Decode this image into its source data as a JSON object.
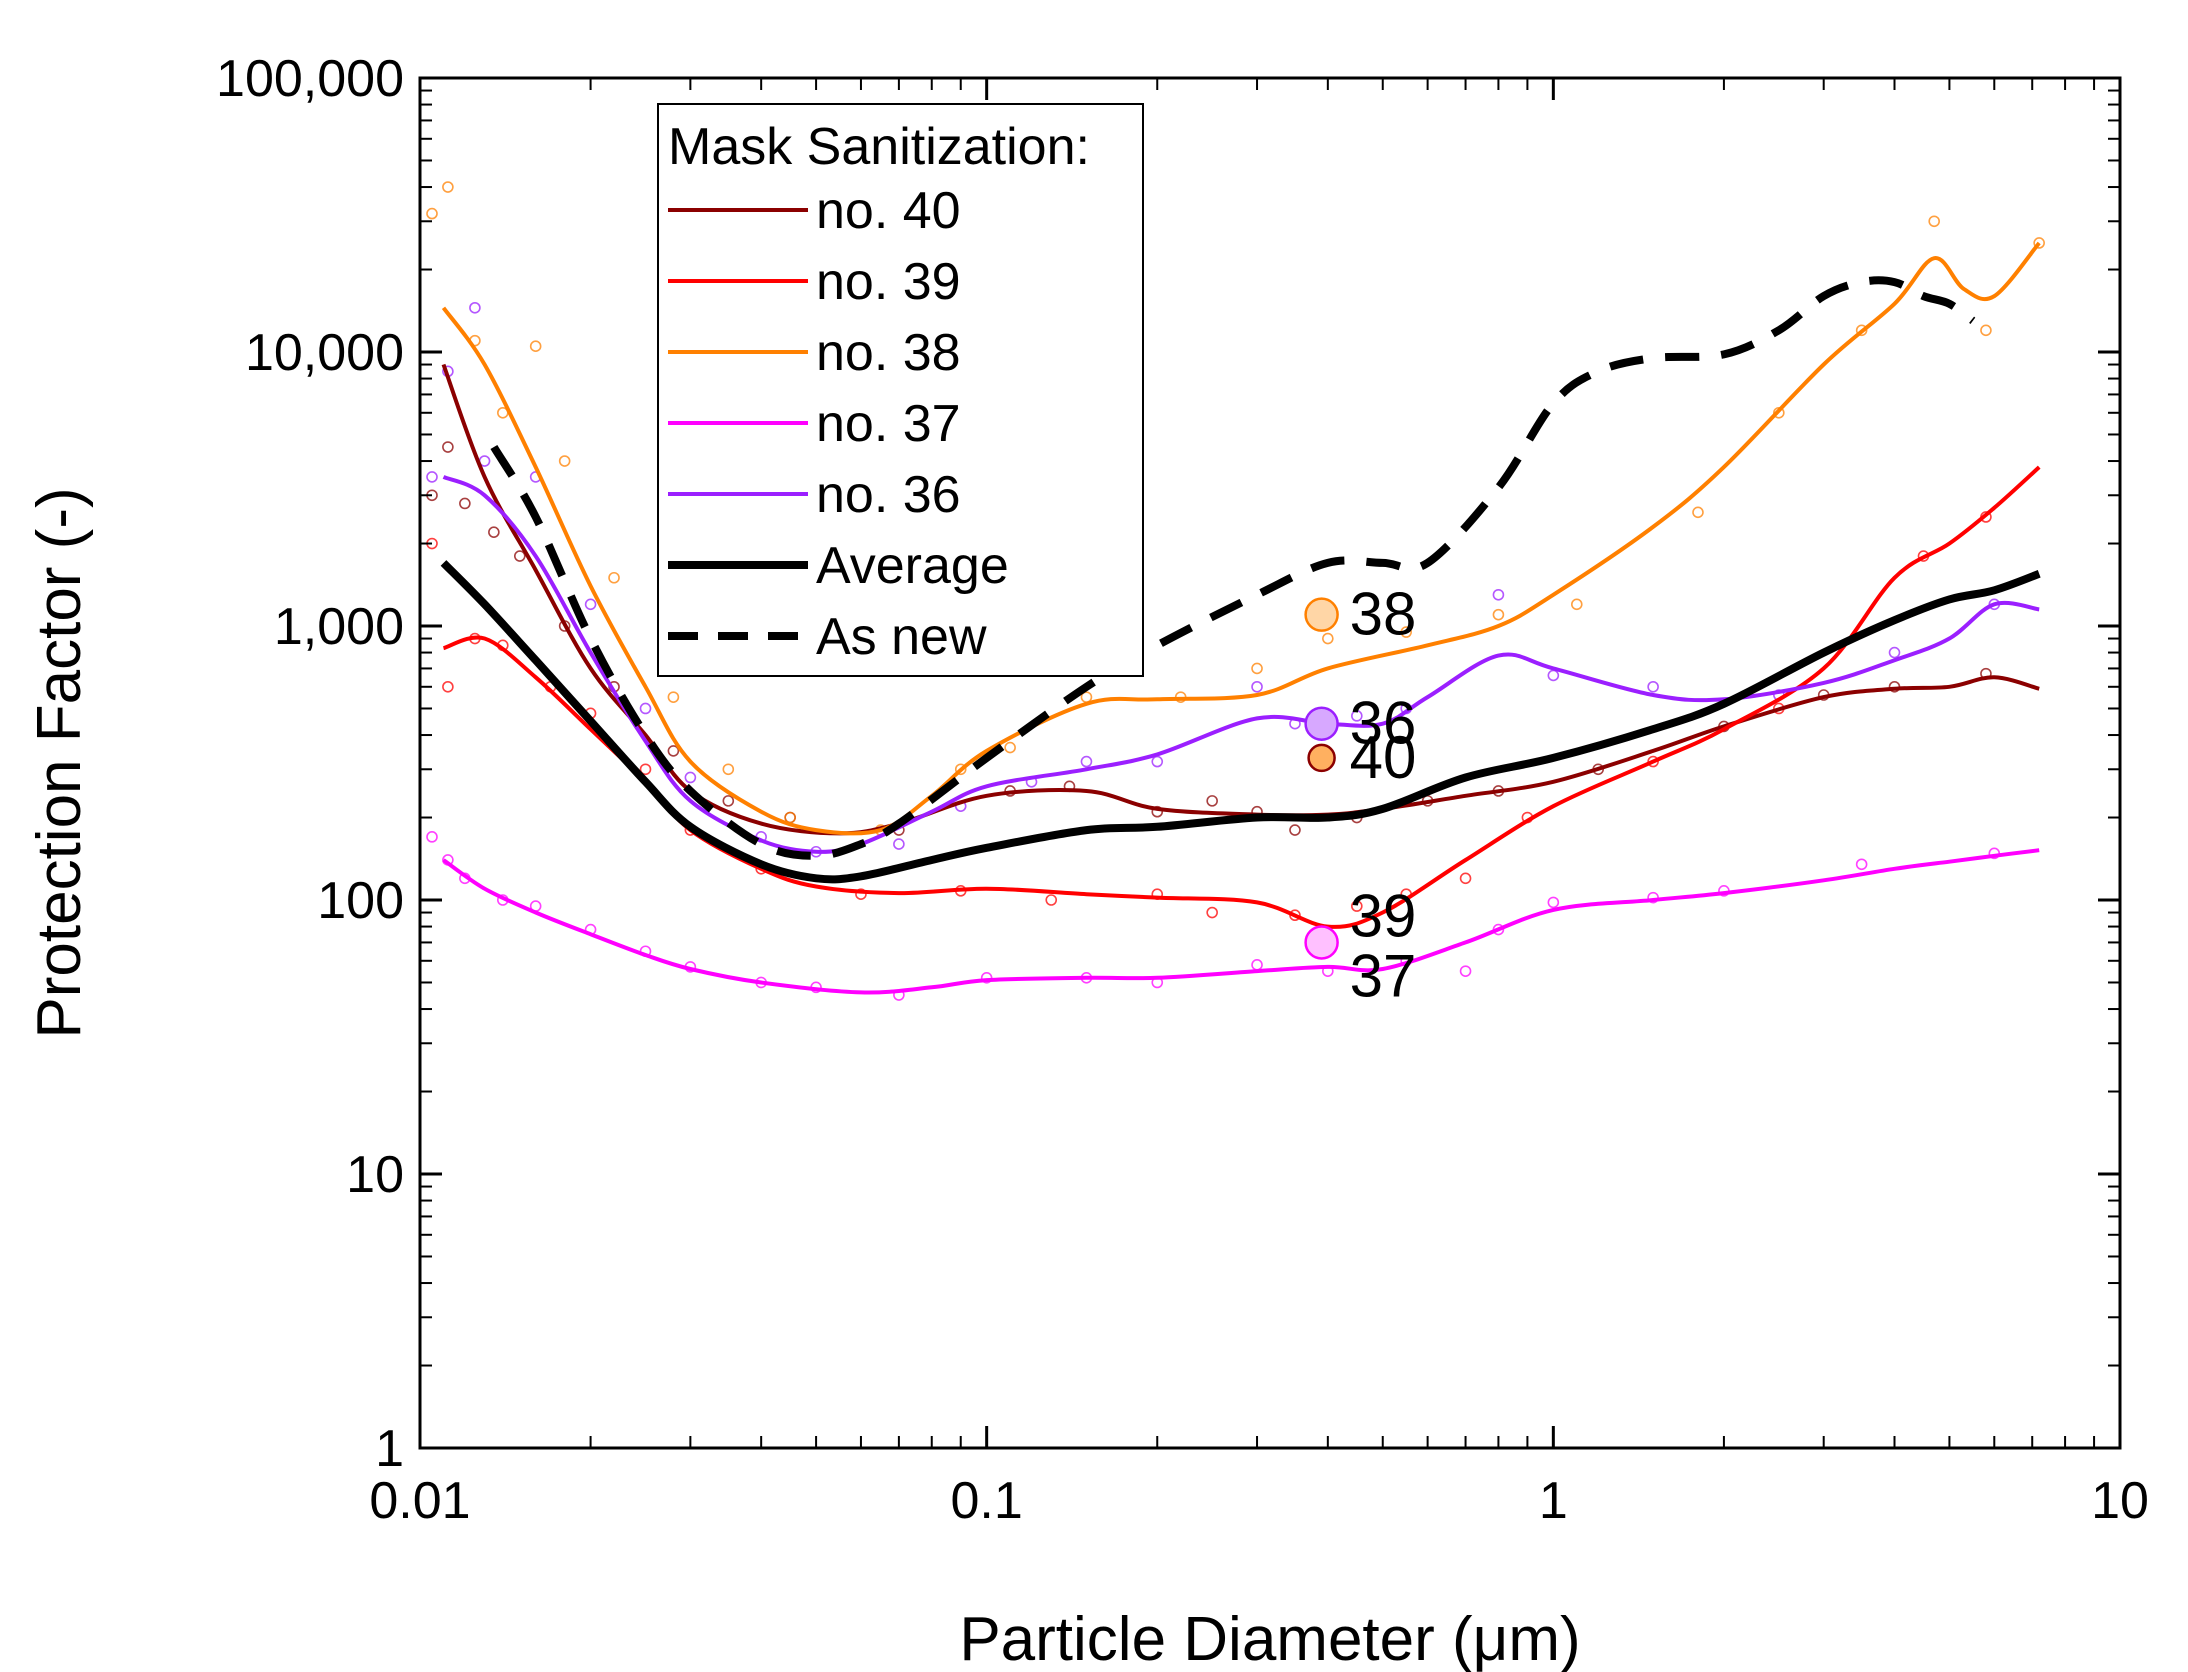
{
  "chart_data": {
    "type": "line",
    "xlabel": "Particle Diameter (μm)",
    "ylabel": "Protection Factor (-)",
    "xscale": "log",
    "yscale": "log",
    "xlim": [
      0.01,
      10
    ],
    "ylim": [
      1,
      100000
    ],
    "x_ticks": [
      {
        "value": 0.01,
        "label": "0.01"
      },
      {
        "value": 0.1,
        "label": "0.1"
      },
      {
        "value": 1,
        "label": "1"
      },
      {
        "value": 10,
        "label": "10"
      }
    ],
    "y_ticks": [
      {
        "value": 1,
        "label": "1"
      },
      {
        "value": 10,
        "label": "10"
      },
      {
        "value": 100,
        "label": "100"
      },
      {
        "value": 1000,
        "label": "1,000"
      },
      {
        "value": 10000,
        "label": "10,000"
      },
      {
        "value": 100000,
        "label": "100,000"
      }
    ],
    "legend": {
      "title": "Mask Sanitization:",
      "position": "top-left"
    },
    "series": [
      {
        "name": "no. 40",
        "color": "#8b0000",
        "style": "solid",
        "width": "normal",
        "x": [
          0.011,
          0.013,
          0.016,
          0.02,
          0.025,
          0.03,
          0.04,
          0.055,
          0.07,
          0.1,
          0.15,
          0.2,
          0.3,
          0.4,
          0.5,
          0.7,
          1.0,
          1.5,
          2.0,
          3.0,
          4.0,
          5.0,
          6.0,
          7.2
        ],
        "y": [
          9000,
          3500,
          1600,
          700,
          400,
          250,
          190,
          175,
          190,
          240,
          250,
          215,
          205,
          205,
          215,
          240,
          270,
          350,
          430,
          550,
          590,
          600,
          650,
          590
        ]
      },
      {
        "name": "no. 39",
        "color": "#ff0000",
        "style": "solid",
        "width": "normal",
        "x": [
          0.011,
          0.013,
          0.016,
          0.02,
          0.025,
          0.03,
          0.04,
          0.05,
          0.07,
          0.1,
          0.15,
          0.2,
          0.3,
          0.4,
          0.5,
          0.7,
          1.0,
          1.5,
          2.0,
          3.0,
          4.0,
          5.0,
          6.0,
          7.2
        ],
        "y": [
          830,
          900,
          650,
          420,
          270,
          180,
          130,
          112,
          106,
          110,
          105,
          102,
          98,
          80,
          90,
          140,
          220,
          320,
          420,
          700,
          1500,
          2000,
          2700,
          3800
        ]
      },
      {
        "name": "no. 38",
        "color": "#ff8000",
        "style": "solid",
        "width": "normal",
        "x": [
          0.011,
          0.013,
          0.016,
          0.02,
          0.025,
          0.03,
          0.04,
          0.05,
          0.065,
          0.08,
          0.1,
          0.15,
          0.2,
          0.3,
          0.4,
          0.6,
          0.8,
          1.0,
          1.5,
          2.0,
          3.0,
          4.0,
          4.7,
          5.3,
          6.0,
          7.2
        ],
        "y": [
          14500,
          9000,
          3800,
          1400,
          600,
          320,
          210,
          180,
          180,
          240,
          350,
          520,
          540,
          560,
          700,
          850,
          1000,
          1300,
          2300,
          3800,
          9000,
          15000,
          22000,
          17000,
          16000,
          25000
        ]
      },
      {
        "name": "no. 37",
        "color": "#ff00ff",
        "style": "solid",
        "width": "normal",
        "x": [
          0.011,
          0.013,
          0.016,
          0.02,
          0.025,
          0.03,
          0.04,
          0.06,
          0.08,
          0.1,
          0.15,
          0.2,
          0.3,
          0.4,
          0.5,
          0.7,
          1.0,
          1.5,
          2.0,
          3.0,
          4.0,
          5.0,
          6.0,
          7.2
        ],
        "y": [
          140,
          110,
          90,
          75,
          63,
          56,
          50,
          46,
          48,
          51,
          52,
          52,
          55,
          57,
          56,
          70,
          92,
          100,
          106,
          118,
          130,
          138,
          145,
          152
        ]
      },
      {
        "name": "no. 36",
        "color": "#9b1fff",
        "style": "solid",
        "width": "normal",
        "x": [
          0.011,
          0.013,
          0.016,
          0.02,
          0.025,
          0.03,
          0.04,
          0.05,
          0.06,
          0.08,
          0.1,
          0.15,
          0.2,
          0.3,
          0.4,
          0.5,
          0.6,
          0.8,
          1.0,
          1.5,
          2.0,
          3.0,
          4.0,
          5.0,
          6.0,
          7.2
        ],
        "y": [
          3500,
          3000,
          1800,
          800,
          380,
          230,
          165,
          150,
          160,
          210,
          260,
          300,
          340,
          460,
          440,
          440,
          550,
          780,
          700,
          560,
          540,
          620,
          750,
          900,
          1200,
          1150
        ]
      },
      {
        "name": "Average",
        "color": "#000000",
        "style": "solid",
        "width": "thick",
        "x": [
          0.011,
          0.013,
          0.016,
          0.02,
          0.025,
          0.03,
          0.04,
          0.05,
          0.06,
          0.08,
          0.1,
          0.15,
          0.2,
          0.3,
          0.4,
          0.5,
          0.7,
          1.0,
          1.5,
          2.0,
          3.0,
          4.0,
          5.0,
          6.0,
          7.2
        ],
        "y": [
          1700,
          1200,
          750,
          450,
          270,
          185,
          135,
          120,
          122,
          140,
          155,
          180,
          185,
          200,
          200,
          215,
          280,
          330,
          420,
          520,
          800,
          1050,
          1250,
          1350,
          1550
        ]
      },
      {
        "name": "As new",
        "color": "#000000",
        "style": "dashed",
        "width": "thick",
        "x": [
          0.0135,
          0.016,
          0.02,
          0.025,
          0.03,
          0.04,
          0.05,
          0.06,
          0.07,
          0.1,
          0.15,
          0.2,
          0.3,
          0.4,
          0.5,
          0.6,
          0.8,
          1.0,
          1.2,
          1.5,
          2.0,
          2.5,
          3.0,
          3.5,
          4.0,
          4.5,
          5.0,
          5.5
        ],
        "y": [
          4500,
          2500,
          900,
          400,
          250,
          160,
          145,
          160,
          190,
          330,
          600,
          850,
          1300,
          1700,
          1700,
          1700,
          3200,
          6500,
          8500,
          9500,
          9800,
          12000,
          16000,
          18000,
          18000,
          16000,
          15000,
          13000
        ]
      }
    ],
    "scatter_points": [
      {
        "series": "no. 40",
        "points": [
          [
            0.0105,
            3000
          ],
          [
            0.0112,
            4500
          ],
          [
            0.012,
            2800
          ],
          [
            0.0135,
            2200
          ],
          [
            0.015,
            1800
          ],
          [
            0.018,
            1000
          ],
          [
            0.022,
            600
          ],
          [
            0.028,
            350
          ],
          [
            0.035,
            230
          ],
          [
            0.045,
            200
          ],
          [
            0.07,
            180
          ],
          [
            0.11,
            250
          ],
          [
            0.14,
            260
          ],
          [
            0.2,
            210
          ],
          [
            0.25,
            230
          ],
          [
            0.3,
            210
          ],
          [
            0.35,
            180
          ],
          [
            0.45,
            200
          ],
          [
            0.6,
            230
          ],
          [
            0.8,
            250
          ],
          [
            1.2,
            300
          ],
          [
            2.0,
            430
          ],
          [
            3.0,
            560
          ],
          [
            4.0,
            600
          ],
          [
            5.8,
            670
          ]
        ]
      },
      {
        "series": "no. 39",
        "points": [
          [
            0.0105,
            2000
          ],
          [
            0.0112,
            600
          ],
          [
            0.0125,
            900
          ],
          [
            0.014,
            850
          ],
          [
            0.017,
            600
          ],
          [
            0.02,
            480
          ],
          [
            0.025,
            300
          ],
          [
            0.03,
            180
          ],
          [
            0.04,
            130
          ],
          [
            0.06,
            105
          ],
          [
            0.09,
            108
          ],
          [
            0.13,
            100
          ],
          [
            0.2,
            105
          ],
          [
            0.25,
            90
          ],
          [
            0.35,
            88
          ],
          [
            0.45,
            95
          ],
          [
            0.55,
            105
          ],
          [
            0.7,
            120
          ],
          [
            0.9,
            200
          ],
          [
            1.5,
            320
          ],
          [
            2.5,
            500
          ],
          [
            4.5,
            1800
          ],
          [
            5.8,
            2500
          ]
        ]
      },
      {
        "series": "no. 38",
        "points": [
          [
            0.0105,
            32000
          ],
          [
            0.0112,
            40000
          ],
          [
            0.0125,
            11000
          ],
          [
            0.014,
            6000
          ],
          [
            0.016,
            10500
          ],
          [
            0.018,
            4000
          ],
          [
            0.022,
            1500
          ],
          [
            0.028,
            550
          ],
          [
            0.035,
            300
          ],
          [
            0.045,
            200
          ],
          [
            0.065,
            180
          ],
          [
            0.09,
            300
          ],
          [
            0.11,
            360
          ],
          [
            0.15,
            550
          ],
          [
            0.22,
            550
          ],
          [
            0.3,
            700
          ],
          [
            0.4,
            900
          ],
          [
            0.55,
            950
          ],
          [
            0.8,
            1100
          ],
          [
            1.1,
            1200
          ],
          [
            1.8,
            2600
          ],
          [
            2.5,
            6000
          ],
          [
            3.5,
            12000
          ],
          [
            4.7,
            30000
          ],
          [
            5.8,
            12000
          ],
          [
            7.2,
            25000
          ]
        ]
      },
      {
        "series": "no. 37",
        "points": [
          [
            0.0105,
            170
          ],
          [
            0.0112,
            140
          ],
          [
            0.012,
            120
          ],
          [
            0.014,
            100
          ],
          [
            0.016,
            95
          ],
          [
            0.02,
            78
          ],
          [
            0.025,
            65
          ],
          [
            0.03,
            57
          ],
          [
            0.04,
            50
          ],
          [
            0.05,
            48
          ],
          [
            0.07,
            45
          ],
          [
            0.1,
            52
          ],
          [
            0.15,
            52
          ],
          [
            0.2,
            50
          ],
          [
            0.3,
            58
          ],
          [
            0.4,
            55
          ],
          [
            0.55,
            60
          ],
          [
            0.7,
            55
          ],
          [
            0.8,
            78
          ],
          [
            1.0,
            98
          ],
          [
            1.5,
            102
          ],
          [
            2.0,
            108
          ],
          [
            3.5,
            135
          ],
          [
            6.0,
            148
          ]
        ]
      },
      {
        "series": "no. 36",
        "points": [
          [
            0.0105,
            3500
          ],
          [
            0.0112,
            8500
          ],
          [
            0.0125,
            14500
          ],
          [
            0.013,
            4000
          ],
          [
            0.016,
            3500
          ],
          [
            0.02,
            1200
          ],
          [
            0.025,
            500
          ],
          [
            0.03,
            280
          ],
          [
            0.04,
            170
          ],
          [
            0.05,
            150
          ],
          [
            0.07,
            160
          ],
          [
            0.09,
            220
          ],
          [
            0.12,
            270
          ],
          [
            0.15,
            320
          ],
          [
            0.2,
            320
          ],
          [
            0.3,
            600
          ],
          [
            0.35,
            440
          ],
          [
            0.45,
            470
          ],
          [
            0.55,
            500
          ],
          [
            0.8,
            1300
          ],
          [
            1.0,
            660
          ],
          [
            1.5,
            600
          ],
          [
            2.5,
            560
          ],
          [
            4.0,
            800
          ],
          [
            6.0,
            1200
          ]
        ]
      }
    ],
    "annotations": [
      {
        "text": "38",
        "x": 0.39,
        "y": 1100,
        "fill": "#ffd6a6",
        "stroke": "#ff8000",
        "size": "large"
      },
      {
        "text": "36",
        "x": 0.39,
        "y": 440,
        "fill": "#d7a8ff",
        "stroke": "#9b1fff",
        "size": "large"
      },
      {
        "text": "40",
        "x": 0.39,
        "y": 330,
        "fill": "#ffb060",
        "stroke": "#8b0000",
        "size": "small"
      },
      {
        "text": "39",
        "x": 0.39,
        "y": 70,
        "fill": "#ffb0a0",
        "stroke": "#ff0000",
        "size": "small"
      },
      {
        "text": "37",
        "x": 0.39,
        "y": 70,
        "fill": "#ffc0ff",
        "stroke": "#ff00ff",
        "size": "large"
      }
    ]
  }
}
